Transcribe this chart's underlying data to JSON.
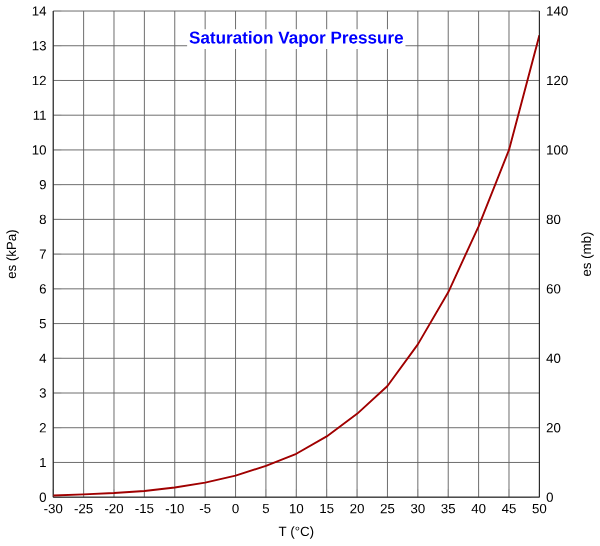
{
  "chart_data": {
    "type": "line",
    "title": "Saturation Vapor Pressure",
    "xlabel": "T (°C)",
    "ylabel": "es (kPa)",
    "y2label": "es (mb)",
    "series": [
      {
        "color": "#a00000",
        "x": [
          -30,
          -25,
          -20,
          -15,
          -10,
          -5,
          0,
          5,
          10,
          15,
          20,
          25,
          30,
          35,
          40,
          45,
          50
        ],
        "values": [
          0.05,
          0.08,
          0.12,
          0.18,
          0.28,
          0.42,
          0.62,
          0.9,
          1.25,
          1.75,
          2.4,
          3.2,
          4.4,
          5.9,
          7.8,
          10.0,
          13.3
        ]
      }
    ],
    "xlim": [
      -30,
      50
    ],
    "xticks": [
      -30,
      -25,
      -20,
      -15,
      -10,
      -5,
      0,
      5,
      10,
      15,
      20,
      25,
      30,
      35,
      40,
      45,
      50
    ],
    "ylim": [
      0,
      14
    ],
    "yticks": [
      0,
      1,
      2,
      3,
      4,
      5,
      6,
      7,
      8,
      9,
      10,
      11,
      12,
      13,
      14
    ],
    "y2lim": [
      0,
      140
    ],
    "y2ticks": [
      0,
      20,
      40,
      60,
      80,
      100,
      120,
      140
    ],
    "grid": true,
    "marker": "none",
    "line_style": "solid"
  }
}
